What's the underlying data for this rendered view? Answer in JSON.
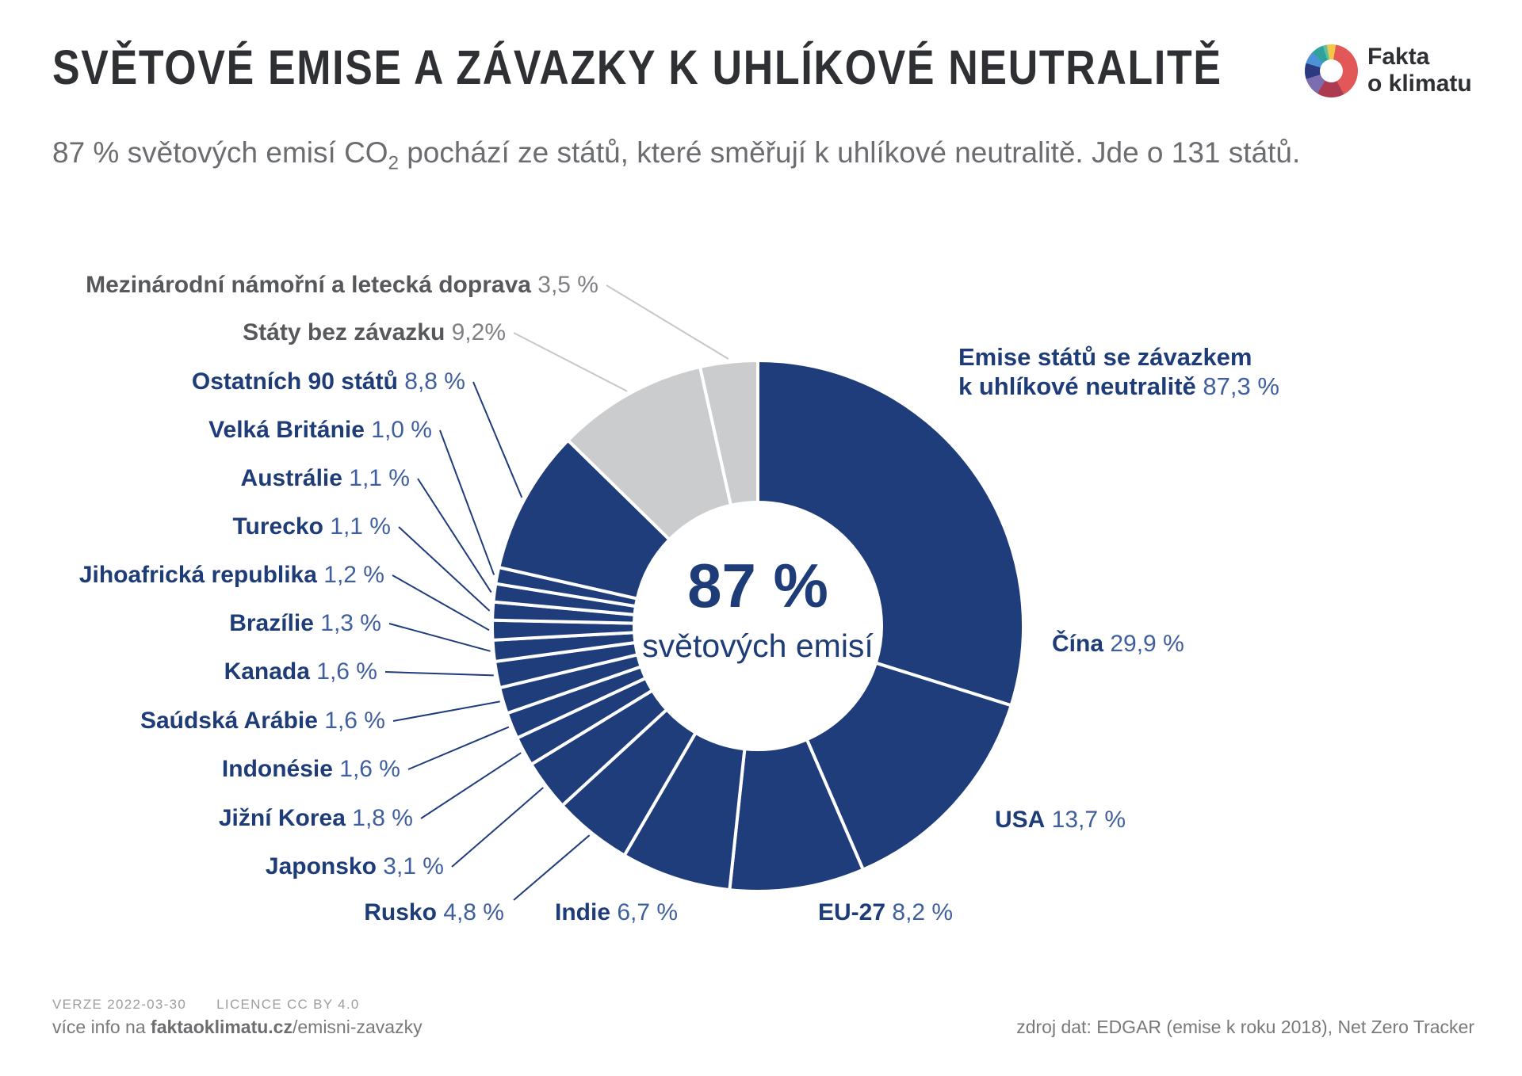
{
  "title": "SVĚTOVÉ EMISE A ZÁVAZKY K UHLÍKOVÉ NEUTRALITĚ",
  "logo": {
    "line1": "Fakta",
    "line2": "o klimatu",
    "wheel_colors": [
      {
        "color": "#F2C84B",
        "from": 0,
        "to": 10
      },
      {
        "color": "#E25757",
        "from": 10,
        "to": 152
      },
      {
        "color": "#AC3B52",
        "from": 152,
        "to": 212
      },
      {
        "color": "#7A6EB0",
        "from": 212,
        "to": 252
      },
      {
        "color": "#2B3A80",
        "from": 252,
        "to": 287
      },
      {
        "color": "#4D92D6",
        "from": 287,
        "to": 315
      },
      {
        "color": "#2FA39B",
        "from": 315,
        "to": 341
      },
      {
        "color": "#62BFA2",
        "from": 341,
        "to": 350
      },
      {
        "color": "#F2C84B",
        "from": 350,
        "to": 360
      }
    ]
  },
  "subtitle": {
    "pre": "87 % světových emisí CO",
    "sub": "2",
    "post": " pochází ze států, které směřují k uhlíkové neutralitě. Jde o 131 států."
  },
  "center": {
    "percent": "87 %",
    "caption": "světových emisí"
  },
  "annotation": {
    "line1": "Emise států se závazkem",
    "line2": "k uhlíkové neutralitě",
    "value": "87,3 %"
  },
  "chart_data": {
    "type": "pie",
    "title": "Světové emise a závazky k uhlíkové neutralitě",
    "units": "% světových emisí CO2",
    "start_angle_deg": 0,
    "direction": "clockwise",
    "colors": {
      "committed": "#1F3D7A",
      "nocommit": "#CBCCCE"
    },
    "committed_total": {
      "label": "Emise států se závazkem k uhlíkové neutralitě",
      "value": 87.3,
      "value_label": "87,3 %"
    },
    "segments": [
      {
        "id": "cina",
        "label": "Čína",
        "value": 29.9,
        "value_label": "29,9 %",
        "group": "committed"
      },
      {
        "id": "usa",
        "label": "USA",
        "value": 13.7,
        "value_label": "13,7 %",
        "group": "committed"
      },
      {
        "id": "eu27",
        "label": "EU-27",
        "value": 8.2,
        "value_label": "8,2 %",
        "group": "committed"
      },
      {
        "id": "indie",
        "label": "Indie",
        "value": 6.7,
        "value_label": "6,7 %",
        "group": "committed"
      },
      {
        "id": "rusko",
        "label": "Rusko",
        "value": 4.8,
        "value_label": "4,8 %",
        "group": "committed"
      },
      {
        "id": "japonsko",
        "label": "Japonsko",
        "value": 3.1,
        "value_label": "3,1 %",
        "group": "committed"
      },
      {
        "id": "jiznikorea",
        "label": "Jižní Korea",
        "value": 1.8,
        "value_label": "1,8 %",
        "group": "committed"
      },
      {
        "id": "indonesie",
        "label": "Indonésie",
        "value": 1.6,
        "value_label": "1,6 %",
        "group": "committed"
      },
      {
        "id": "saudska",
        "label": "Saúdská Arábie",
        "value": 1.6,
        "value_label": "1,6 %",
        "group": "committed"
      },
      {
        "id": "kanada",
        "label": "Kanada",
        "value": 1.6,
        "value_label": "1,6 %",
        "group": "committed"
      },
      {
        "id": "brazilie",
        "label": "Brazílie",
        "value": 1.3,
        "value_label": "1,3 %",
        "group": "committed"
      },
      {
        "id": "jihoafricka",
        "label": "Jihoafrická republika",
        "value": 1.2,
        "value_label": "1,2 %",
        "group": "committed"
      },
      {
        "id": "turecko",
        "label": "Turecko",
        "value": 1.1,
        "value_label": "1,1 %",
        "group": "committed"
      },
      {
        "id": "australie",
        "label": "Austrálie",
        "value": 1.1,
        "value_label": "1,1 %",
        "group": "committed"
      },
      {
        "id": "velkabritanie",
        "label": "Velká Británie",
        "value": 1.0,
        "value_label": "1,0 %",
        "group": "committed"
      },
      {
        "id": "ostatnich",
        "label": "Ostatních 90 států",
        "value": 8.8,
        "value_label": "8,8 %",
        "group": "committed"
      },
      {
        "id": "statybez",
        "label": "Státy bez závazku",
        "value": 9.2,
        "value_label": "9,2%",
        "group": "nocommit"
      },
      {
        "id": "maritime",
        "label": "Mezinárodní námořní a letecká doprava",
        "value": 3.5,
        "value_label": "3,5 %",
        "group": "nocommit"
      }
    ]
  },
  "footer": {
    "verze": "VERZE 2022-03-30",
    "licence": "LICENCE CC BY 4.0",
    "info_pre": "více info na ",
    "info_domain": "faktaoklimatu.cz",
    "info_path": "/emisni-zavazky",
    "source": "zdroj dat: EDGAR (emise k roku 2018), Net Zero Tracker"
  }
}
